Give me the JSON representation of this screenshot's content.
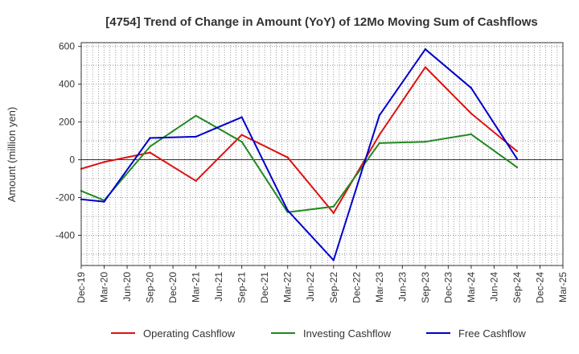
{
  "chart_data": {
    "type": "line",
    "title": "[4754]  Trend of Change in Amount (YoY) of 12Mo Moving Sum of Cashflows",
    "xlabel": "",
    "ylabel": "Amount (million yen)",
    "ylim": [
      -560,
      620
    ],
    "yticks": [
      600,
      400,
      200,
      0,
      -200,
      -400
    ],
    "categories": [
      "Dec-19",
      "Mar-20",
      "Jun-20",
      "Sep-20",
      "Dec-20",
      "Mar-21",
      "Jun-21",
      "Sep-21",
      "Dec-21",
      "Mar-22",
      "Jun-22",
      "Sep-22",
      "Dec-22",
      "Mar-23",
      "Jun-23",
      "Sep-23",
      "Dec-23",
      "Mar-24",
      "Jun-24",
      "Sep-24",
      "Dec-24",
      "Mar-25"
    ],
    "grid": true,
    "legend_position": "bottom",
    "series": [
      {
        "name": "Operating Cashflow",
        "color": "#dd1111",
        "values": [
          -48,
          -12,
          null,
          38,
          null,
          -112,
          null,
          132,
          null,
          12,
          null,
          -282,
          null,
          132,
          null,
          490,
          null,
          245,
          null,
          45,
          null,
          null
        ]
      },
      {
        "name": "Investing Cashflow",
        "color": "#228822",
        "values": [
          -165,
          -215,
          null,
          70,
          null,
          233,
          null,
          95,
          null,
          -278,
          null,
          -248,
          null,
          88,
          null,
          95,
          null,
          135,
          null,
          -40,
          null,
          null
        ]
      },
      {
        "name": "Free Cashflow",
        "color": "#0000cc",
        "values": [
          -210,
          -222,
          null,
          115,
          null,
          122,
          null,
          225,
          null,
          -268,
          null,
          -532,
          null,
          235,
          null,
          585,
          null,
          380,
          null,
          5,
          null,
          null
        ]
      }
    ]
  }
}
